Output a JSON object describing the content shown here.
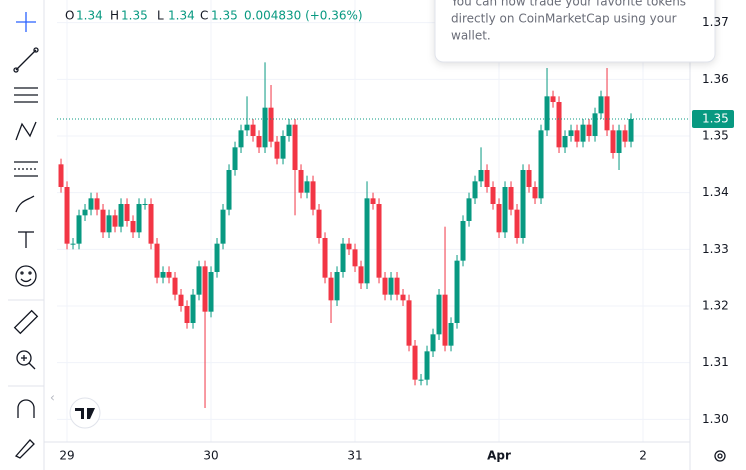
{
  "chart_data": {
    "type": "candlestick",
    "ohlc_legend": {
      "labels": [
        "O",
        "H",
        "L",
        "C"
      ],
      "values": [
        1.34,
        1.35,
        1.34,
        1.35
      ],
      "change": "0.004830 (+0.36%)"
    },
    "x": [
      -1,
      0,
      1,
      2,
      3,
      4,
      5,
      6,
      7,
      8,
      9,
      10,
      11,
      12,
      13,
      14,
      15,
      16,
      17,
      18,
      19,
      20,
      21,
      22,
      23,
      24,
      25,
      26,
      27,
      28,
      29,
      30,
      31,
      32,
      33,
      34,
      35,
      36,
      37,
      38,
      39,
      40,
      41,
      42,
      43,
      44,
      45,
      46,
      47,
      48,
      49,
      50,
      51,
      52,
      53,
      54,
      55,
      56,
      57,
      58,
      59,
      60,
      61,
      62,
      63,
      64,
      65,
      66,
      67,
      68,
      69,
      70,
      71,
      72,
      73,
      74,
      75,
      76,
      77,
      78,
      79,
      80,
      81,
      82,
      83,
      84,
      85,
      86,
      87,
      88,
      89,
      90,
      91,
      92,
      93,
      94
    ],
    "open": [
      1.345,
      1.341,
      1.331,
      1.331,
      1.336,
      1.337,
      1.339,
      1.337,
      1.333,
      1.336,
      1.334,
      1.338,
      1.335,
      1.333,
      1.338,
      1.338,
      1.331,
      1.325,
      1.326,
      1.325,
      1.322,
      1.32,
      1.317,
      1.322,
      1.327,
      1.319,
      1.326,
      1.331,
      1.337,
      1.344,
      1.348,
      1.351,
      1.352,
      1.35,
      1.348,
      1.355,
      1.349,
      1.346,
      1.35,
      1.352,
      1.344,
      1.34,
      1.342,
      1.337,
      1.332,
      1.325,
      1.321,
      1.326,
      1.331,
      1.33,
      1.327,
      1.324,
      1.339,
      1.338,
      1.325,
      1.322,
      1.325,
      1.322,
      1.321,
      1.313,
      1.307,
      1.307,
      1.312,
      1.315,
      1.322,
      1.313,
      1.317,
      1.328,
      1.335,
      1.339,
      1.342,
      1.344,
      1.341,
      1.338,
      1.333,
      1.341,
      1.337,
      1.332,
      1.344,
      1.341,
      1.339,
      1.351,
      1.357,
      1.356,
      1.348,
      1.35,
      1.351,
      1.349,
      1.352,
      1.35,
      1.354,
      1.357,
      1.351,
      1.347,
      1.351,
      1.349
    ],
    "high": [
      1.346,
      1.342,
      1.332,
      1.337,
      1.338,
      1.34,
      1.34,
      1.338,
      1.337,
      1.337,
      1.339,
      1.339,
      1.336,
      1.339,
      1.339,
      1.339,
      1.332,
      1.327,
      1.327,
      1.326,
      1.323,
      1.321,
      1.323,
      1.328,
      1.328,
      1.327,
      1.332,
      1.338,
      1.345,
      1.349,
      1.352,
      1.357,
      1.353,
      1.351,
      1.363,
      1.359,
      1.35,
      1.351,
      1.353,
      1.353,
      1.345,
      1.343,
      1.343,
      1.338,
      1.333,
      1.326,
      1.327,
      1.332,
      1.332,
      1.331,
      1.328,
      1.342,
      1.34,
      1.339,
      1.326,
      1.326,
      1.326,
      1.323,
      1.322,
      1.314,
      1.308,
      1.313,
      1.316,
      1.323,
      1.334,
      1.318,
      1.329,
      1.336,
      1.34,
      1.343,
      1.348,
      1.345,
      1.342,
      1.339,
      1.342,
      1.342,
      1.338,
      1.345,
      1.345,
      1.342,
      1.352,
      1.362,
      1.358,
      1.357,
      1.351,
      1.352,
      1.352,
      1.353,
      1.353,
      1.355,
      1.358,
      1.362,
      1.352,
      1.352,
      1.352,
      1.354
    ],
    "low": [
      1.34,
      1.33,
      1.33,
      1.33,
      1.335,
      1.336,
      1.336,
      1.332,
      1.332,
      1.333,
      1.333,
      1.334,
      1.332,
      1.332,
      1.337,
      1.33,
      1.324,
      1.324,
      1.324,
      1.321,
      1.319,
      1.316,
      1.316,
      1.321,
      1.302,
      1.318,
      1.325,
      1.33,
      1.336,
      1.343,
      1.347,
      1.35,
      1.349,
      1.347,
      1.347,
      1.348,
      1.345,
      1.345,
      1.349,
      1.336,
      1.339,
      1.339,
      1.336,
      1.331,
      1.324,
      1.317,
      1.32,
      1.325,
      1.329,
      1.326,
      1.323,
      1.323,
      1.337,
      1.324,
      1.321,
      1.321,
      1.321,
      1.32,
      1.312,
      1.306,
      1.306,
      1.306,
      1.311,
      1.314,
      1.312,
      1.312,
      1.316,
      1.327,
      1.334,
      1.338,
      1.341,
      1.34,
      1.337,
      1.332,
      1.332,
      1.336,
      1.331,
      1.331,
      1.34,
      1.338,
      1.338,
      1.35,
      1.355,
      1.347,
      1.347,
      1.349,
      1.348,
      1.348,
      1.349,
      1.349,
      1.353,
      1.35,
      1.346,
      1.344,
      1.348,
      1.348
    ],
    "close": [
      1.341,
      1.331,
      1.331,
      1.336,
      1.337,
      1.339,
      1.337,
      1.333,
      1.336,
      1.334,
      1.338,
      1.335,
      1.333,
      1.338,
      1.338,
      1.331,
      1.325,
      1.326,
      1.325,
      1.322,
      1.32,
      1.317,
      1.322,
      1.327,
      1.319,
      1.326,
      1.331,
      1.337,
      1.344,
      1.348,
      1.351,
      1.352,
      1.35,
      1.348,
      1.355,
      1.349,
      1.346,
      1.35,
      1.352,
      1.344,
      1.34,
      1.342,
      1.337,
      1.332,
      1.325,
      1.321,
      1.326,
      1.331,
      1.33,
      1.327,
      1.324,
      1.339,
      1.338,
      1.325,
      1.322,
      1.325,
      1.322,
      1.321,
      1.313,
      1.307,
      1.307,
      1.312,
      1.315,
      1.322,
      1.313,
      1.317,
      1.328,
      1.335,
      1.339,
      1.342,
      1.344,
      1.341,
      1.338,
      1.333,
      1.341,
      1.337,
      1.332,
      1.344,
      1.341,
      1.339,
      1.351,
      1.357,
      1.356,
      1.348,
      1.35,
      1.351,
      1.349,
      1.352,
      1.35,
      1.354,
      1.357,
      1.351,
      1.347,
      1.351,
      1.349,
      1.353
    ],
    "up_color": "#089981",
    "down_color": "#f23645",
    "last_price": {
      "value": 1.353,
      "label": "1.35"
    },
    "xlim": [
      -1.67,
      103.83
    ],
    "xticks": [
      {
        "value": 0,
        "label": "29"
      },
      {
        "value": 24,
        "label": "30"
      },
      {
        "value": 48,
        "label": "31"
      },
      {
        "value": 72,
        "label": "Apr"
      },
      {
        "value": 96,
        "label": "2"
      }
    ],
    "ylim": [
      1.296,
      1.374
    ],
    "yticks": [
      {
        "value": 1.3,
        "label": "1.30"
      },
      {
        "value": 1.31,
        "label": "1.31"
      },
      {
        "value": 1.32,
        "label": "1.32"
      },
      {
        "value": 1.33,
        "label": "1.33"
      },
      {
        "value": 1.34,
        "label": "1.34"
      },
      {
        "value": 1.35,
        "label": "1.35"
      },
      {
        "value": 1.36,
        "label": "1.36"
      },
      {
        "value": 1.37,
        "label": "1.37"
      }
    ],
    "grid": true
  },
  "popup": {
    "lines": [
      "You can now trade your favorite tokens",
      "directly on CoinMarketCap using your",
      "wallet."
    ]
  }
}
